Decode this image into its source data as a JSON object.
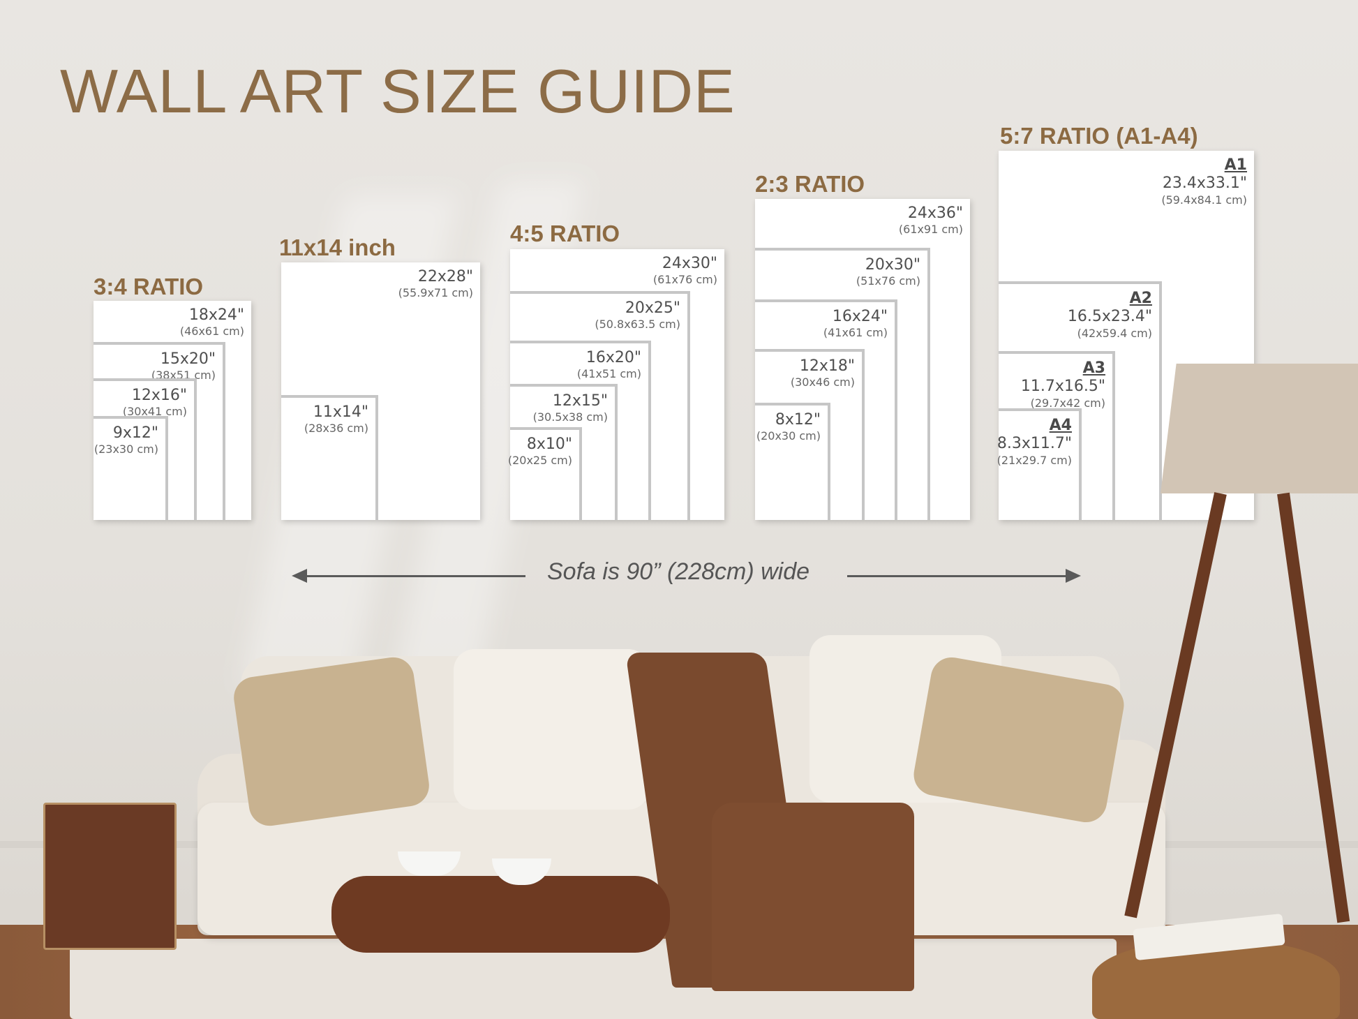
{
  "title": "WALL ART SIZE GUIDE",
  "groups": [
    {
      "label": "3:4 RATIO",
      "sizes": [
        {
          "in": "18x24\"",
          "cm": "(46x61 cm)"
        },
        {
          "in": "15x20\"",
          "cm": "(38x51 cm)"
        },
        {
          "in": "12x16\"",
          "cm": "(30x41 cm)"
        },
        {
          "in": "9x12\"",
          "cm": "(23x30 cm)"
        }
      ]
    },
    {
      "label": "11x14 inch",
      "sizes": [
        {
          "in": "22x28\"",
          "cm": "(55.9x71 cm)"
        },
        {
          "in": "11x14\"",
          "cm": "(28x36 cm)"
        }
      ]
    },
    {
      "label": "4:5 RATIO",
      "sizes": [
        {
          "in": "24x30\"",
          "cm": "(61x76 cm)"
        },
        {
          "in": "20x25\"",
          "cm": "(50.8x63.5 cm)"
        },
        {
          "in": "16x20\"",
          "cm": "(41x51 cm)"
        },
        {
          "in": "12x15\"",
          "cm": "(30.5x38 cm)"
        },
        {
          "in": "8x10\"",
          "cm": "(20x25 cm)"
        }
      ]
    },
    {
      "label": "2:3 RATIO",
      "sizes": [
        {
          "in": "24x36\"",
          "cm": "(61x91 cm)"
        },
        {
          "in": "20x30\"",
          "cm": "(51x76 cm)"
        },
        {
          "in": "16x24\"",
          "cm": "(41x61 cm)"
        },
        {
          "in": "12x18\"",
          "cm": "(30x46 cm)"
        },
        {
          "in": "8x12\"",
          "cm": "(20x30 cm)"
        }
      ]
    },
    {
      "label": "5:7 RATIO (A1-A4)",
      "sizes": [
        {
          "name": "A1",
          "in": "23.4x33.1\"",
          "cm": "(59.4x84.1 cm)"
        },
        {
          "name": "A2",
          "in": "16.5x23.4\"",
          "cm": "(42x59.4 cm)"
        },
        {
          "name": "A3",
          "in": "11.7x16.5\"",
          "cm": "(29.7x42 cm)"
        },
        {
          "name": "A4",
          "in": "8.3x11.7\"",
          "cm": "(21x29.7 cm)"
        }
      ]
    }
  ],
  "sofa_note": "Sofa is 90” (228cm) wide",
  "colors": {
    "accent": "#8c6a42",
    "text": "#4f4f4f",
    "frame_border": "#c6c6c6"
  }
}
